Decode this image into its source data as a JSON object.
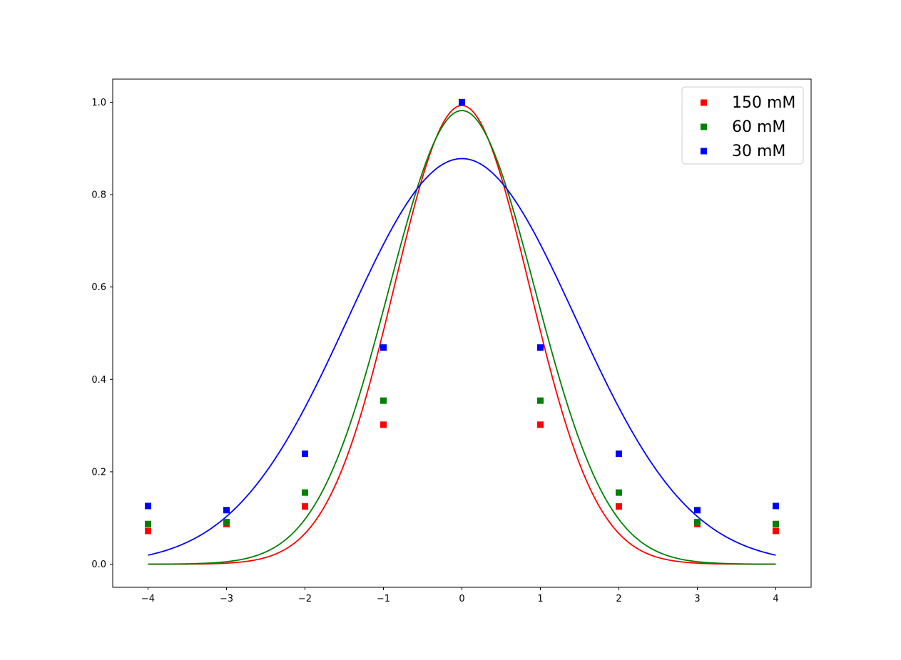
{
  "chart_data": {
    "type": "scatter",
    "title": "",
    "xlabel": "",
    "ylabel": "",
    "xlim": [
      -4.45,
      4.45
    ],
    "ylim": [
      -0.05,
      1.05
    ],
    "x_ticks": [
      -4,
      -3,
      -2,
      -1,
      0,
      1,
      2,
      3,
      4
    ],
    "x_tick_labels": [
      "−4",
      "−3",
      "−2",
      "−1",
      "0",
      "1",
      "2",
      "3",
      "4"
    ],
    "y_ticks": [
      0.0,
      0.2,
      0.4,
      0.6,
      0.8,
      1.0
    ],
    "y_tick_labels": [
      "0.0",
      "0.2",
      "0.4",
      "0.6",
      "0.8",
      "1.0"
    ],
    "grid": false,
    "legend_position": "top-right",
    "series": [
      {
        "name": "150 mM",
        "color": "#ff0000",
        "marker": "square",
        "x": [
          -4,
          -3,
          -2,
          -1,
          0,
          1,
          2,
          3,
          4
        ],
        "y": [
          0.072,
          0.087,
          0.125,
          0.302,
          1.0,
          0.302,
          0.125,
          0.087,
          0.072
        ],
        "fit": {
          "type": "gaussian",
          "amplitude": 0.993,
          "mean": 0,
          "sigma": 0.86,
          "x_range": [
            -4,
            4
          ]
        }
      },
      {
        "name": "60 mM",
        "color": "#008000",
        "marker": "square",
        "x": [
          -4,
          -3,
          -2,
          -1,
          0,
          1,
          2,
          3,
          4
        ],
        "y": [
          0.087,
          0.091,
          0.155,
          0.354,
          1.0,
          0.354,
          0.155,
          0.091,
          0.087
        ],
        "fit": {
          "type": "gaussian",
          "amplitude": 0.982,
          "mean": 0,
          "sigma": 0.93,
          "x_range": [
            -4,
            4
          ]
        }
      },
      {
        "name": "30 mM",
        "color": "#0000ff",
        "marker": "square",
        "x": [
          -4,
          -3,
          -2,
          -1,
          0,
          1,
          2,
          3,
          4
        ],
        "y": [
          0.126,
          0.117,
          0.239,
          0.469,
          1.0,
          0.469,
          0.239,
          0.117,
          0.126
        ],
        "fit": {
          "type": "gaussian",
          "amplitude": 0.878,
          "mean": 0,
          "sigma": 1.45,
          "x_range": [
            -4,
            4
          ]
        }
      }
    ]
  }
}
